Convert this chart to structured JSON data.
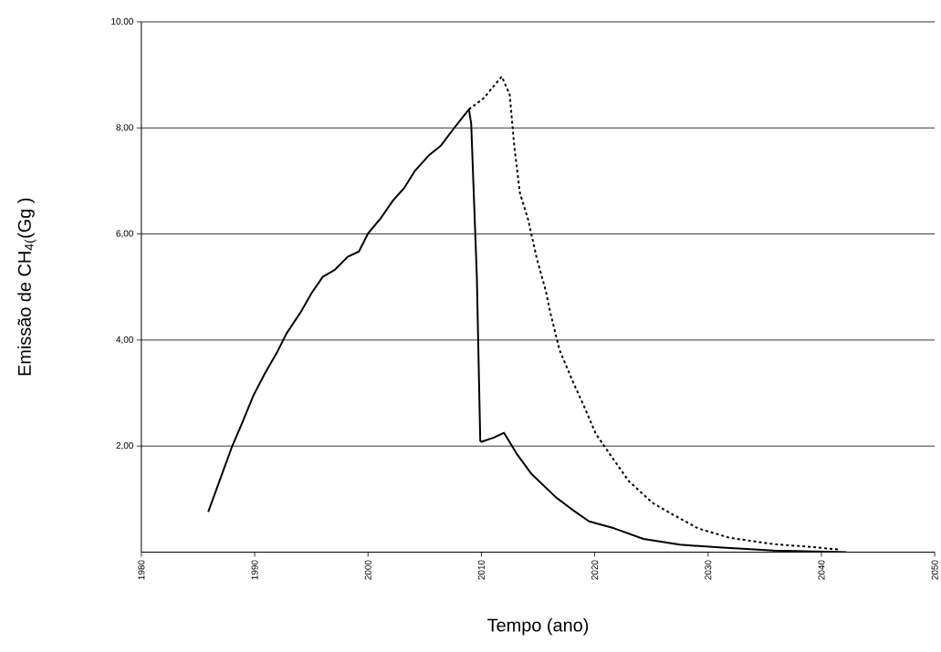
{
  "chart_data": {
    "type": "line",
    "xlabel": "Tempo (ano)",
    "ylabel": "Emissão de CH$_{4(}$(Gg )",
    "xlim": [
      1980,
      2050
    ],
    "xticks": [
      1980,
      1990,
      2000,
      2010,
      2020,
      2030,
      2040,
      2050
    ],
    "ylim": [
      0,
      10
    ],
    "yticks": [
      {
        "value": 2,
        "label": "2,00"
      },
      {
        "value": 4,
        "label": "4,00"
      },
      {
        "value": 6,
        "label": "6,00"
      },
      {
        "value": 8,
        "label": "8,00"
      },
      {
        "value": 10,
        "label": "10,00"
      }
    ],
    "grid": "y",
    "marker": "none",
    "series": [
      {
        "color": "#000000",
        "line_style": "solid",
        "x": [
          1985.9,
          1988.0,
          1988.9,
          1989.9,
          1990.9,
          1992.0,
          1992.8,
          1994.1,
          1995.0,
          1996.0,
          1997.1,
          1998.2,
          1999.2,
          2000.0,
          2001.1,
          2002.2,
          2003.2,
          2004.1,
          2005.4,
          2006.4,
          2007.5,
          2008.9,
          2009.1,
          2009.6,
          2009.9,
          2010.0,
          2011.1,
          2012.0,
          2013.1,
          2014.4,
          2016.6,
          2017.9,
          2019.5,
          2021.7,
          2024.3,
          2027.5,
          2031.6,
          2035.8,
          2042.2
        ],
        "values": [
          0.76,
          1.99,
          2.44,
          2.96,
          3.37,
          3.78,
          4.12,
          4.54,
          4.88,
          5.19,
          5.33,
          5.57,
          5.67,
          6.01,
          6.29,
          6.63,
          6.87,
          7.18,
          7.49,
          7.66,
          7.97,
          8.35,
          8.08,
          5.19,
          2.1,
          2.08,
          2.16,
          2.25,
          1.86,
          1.48,
          1.03,
          0.82,
          0.58,
          0.45,
          0.25,
          0.14,
          0.08,
          0.03,
          0.0
        ]
      },
      {
        "color": "#000000",
        "line_style": "dashed",
        "x": [
          2008.9,
          2010.2,
          2011.8,
          2012.5,
          2012.9,
          2013.4,
          2014.1,
          2014.9,
          2015.7,
          2016.1,
          2016.9,
          2018.1,
          2019.0,
          2020.1,
          2021.2,
          2023.0,
          2025.1,
          2026.8,
          2029.1,
          2031.9,
          2035.8,
          2039.0,
          2041.5
        ],
        "values": [
          8.35,
          8.56,
          8.97,
          8.63,
          7.66,
          6.77,
          6.29,
          5.53,
          4.91,
          4.5,
          3.81,
          3.2,
          2.78,
          2.23,
          1.89,
          1.34,
          0.93,
          0.72,
          0.45,
          0.27,
          0.15,
          0.1,
          0.05
        ]
      }
    ]
  }
}
